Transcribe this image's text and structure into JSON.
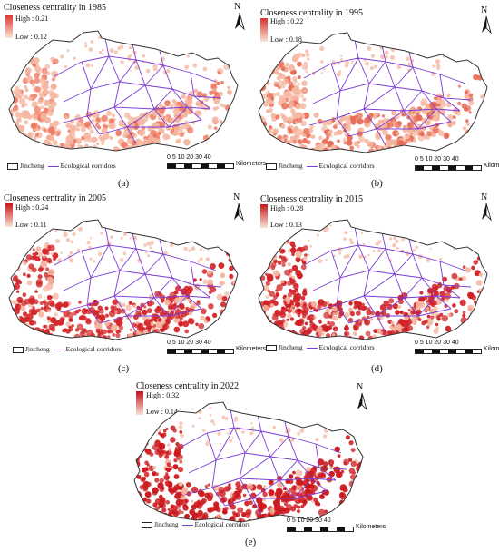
{
  "panels": [
    {
      "id": "a",
      "title": "Closeness centrality in 1985",
      "high": "High : 0.21",
      "low": "Low : 0.12",
      "label": "(a)",
      "intensity": 0.25,
      "accent": "#ee7b65"
    },
    {
      "id": "b",
      "title": "Closeness centrality in 1995",
      "high": "High : 0.22",
      "low": "Low : 0.18",
      "label": "(b)",
      "intensity": 0.35,
      "accent": "#e86a55"
    },
    {
      "id": "c",
      "title": "Closeness centrality in 2005",
      "high": "High : 0.24",
      "low": "Low : 0.11",
      "label": "(c)",
      "intensity": 0.75,
      "accent": "#d3272a"
    },
    {
      "id": "d",
      "title": "Closeness centrality in 2015",
      "high": "High : 0.28",
      "low": "Low : 0.13",
      "label": "(d)",
      "intensity": 0.8,
      "accent": "#d02227"
    },
    {
      "id": "e",
      "title": "Closeness centrality in 2022",
      "high": "High : 0.32",
      "low": "Low : 0.14",
      "label": "(e)",
      "intensity": 0.9,
      "accent": "#cc1a1f"
    }
  ],
  "north_letter": "N",
  "legend": {
    "boundary": "Jincheng",
    "corridors": "Ecological corridors"
  },
  "scale": {
    "numbers": "0 5 10   20    30    40",
    "unit": "Kilometers"
  },
  "colors": {
    "corridor": "#7a3bd4",
    "boundary": "#333333",
    "low_color": "#fbe3d6"
  }
}
